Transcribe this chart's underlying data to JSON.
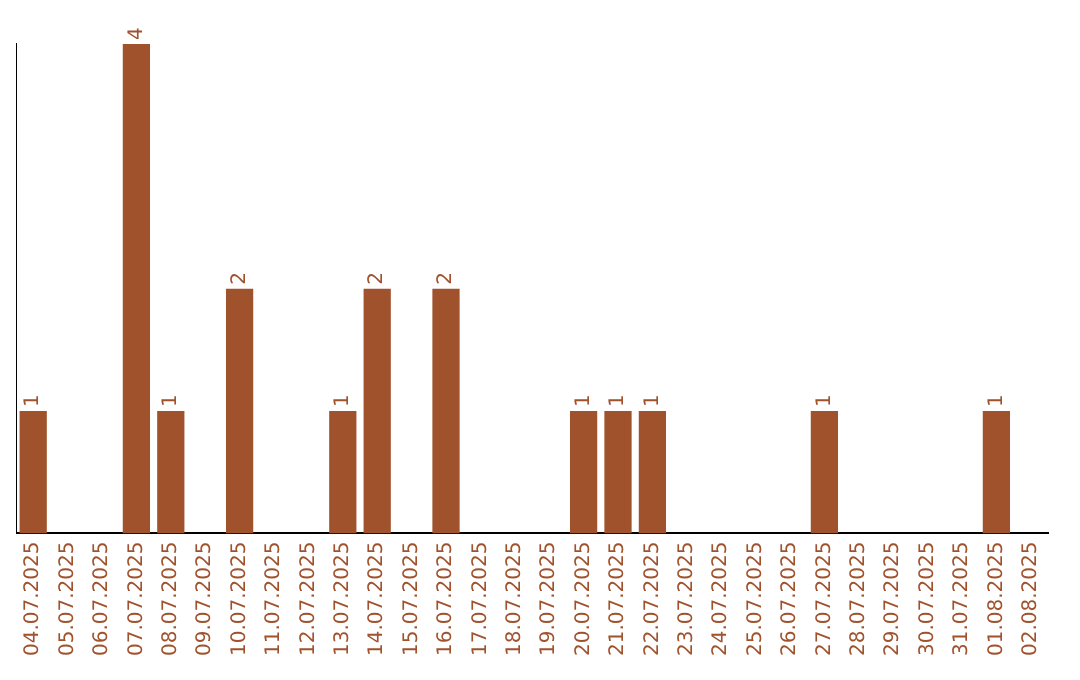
{
  "chart_data": {
    "type": "bar",
    "categories": [
      "04.07.2025",
      "05.07.2025",
      "06.07.2025",
      "07.07.2025",
      "08.07.2025",
      "09.07.2025",
      "10.07.2025",
      "11.07.2025",
      "12.07.2025",
      "13.07.2025",
      "14.07.2025",
      "15.07.2025",
      "16.07.2025",
      "17.07.2025",
      "18.07.2025",
      "19.07.2025",
      "20.07.2025",
      "21.07.2025",
      "22.07.2025",
      "23.07.2025",
      "24.07.2025",
      "25.07.2025",
      "26.07.2025",
      "27.07.2025",
      "28.07.2025",
      "29.07.2025",
      "30.07.2025",
      "31.07.2025",
      "01.08.2025",
      "02.08.2025"
    ],
    "values": [
      1,
      0,
      0,
      4,
      1,
      0,
      2,
      0,
      0,
      1,
      2,
      0,
      2,
      0,
      0,
      0,
      1,
      1,
      1,
      0,
      0,
      0,
      0,
      1,
      0,
      0,
      0,
      0,
      1,
      0
    ],
    "value_labels": [
      "1",
      null,
      null,
      "4",
      "1",
      null,
      "2",
      null,
      null,
      "1",
      "2",
      null,
      "2",
      null,
      null,
      null,
      "1",
      "1",
      "1",
      null,
      null,
      null,
      null,
      "1",
      null,
      null,
      null,
      null,
      "1",
      null
    ],
    "color": "#a0522d",
    "grid": false,
    "legend": false,
    "tick_labels": "x"
  }
}
